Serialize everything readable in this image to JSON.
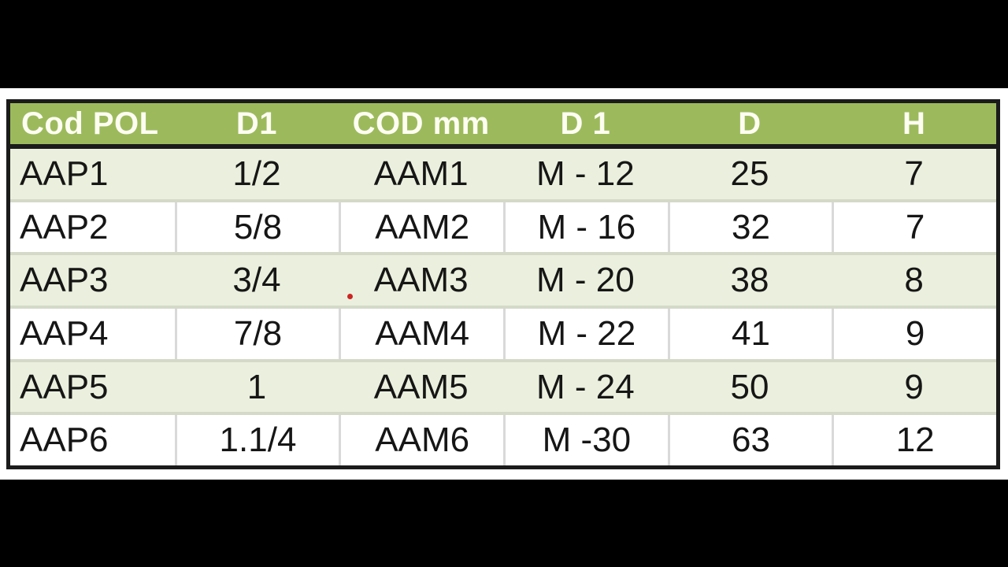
{
  "colors": {
    "canvas_bg": "#ffffff",
    "header_bg": "#9cba5c",
    "header_text": "#fdfdf2",
    "band_row_bg": "#eaf0dd",
    "plain_row_bg": "#ffffff",
    "border_black": "#1b1b1b",
    "row_separator": "#d4d9c8",
    "cell_separator": "#d9d9d9",
    "red_dot": "#cc2424",
    "handle_blue": "#4a52a4"
  },
  "table": {
    "headers": [
      "Cod POL",
      "D1",
      "COD mm",
      "D 1",
      "D",
      "H"
    ],
    "rows": [
      [
        "AAP1",
        "1/2",
        "AAM1",
        "M - 12",
        "25",
        "7"
      ],
      [
        "AAP2",
        "5/8",
        "AAM2",
        "M - 16",
        "32",
        "7"
      ],
      [
        "AAP3",
        "3/4",
        "AAM3",
        "M - 20",
        "38",
        "8"
      ],
      [
        "AAP4",
        "7/8",
        "AAM4",
        "M - 22",
        "41",
        "9"
      ],
      [
        "AAP5",
        "1",
        "AAM5",
        "M - 24",
        "50",
        "9"
      ],
      [
        "AAP6",
        "1.1/4",
        "AAM6",
        "M -30",
        "63",
        "12"
      ]
    ]
  },
  "markers": {
    "comment_dot": "red-dot-on-row-boundary-above-AAM2",
    "selection_handle": "blue-resize-handle-bottom-right"
  }
}
